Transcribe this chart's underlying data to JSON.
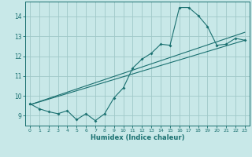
{
  "xlabel": "Humidex (Indice chaleur)",
  "ylabel": "",
  "xlim": [
    -0.5,
    23.5
  ],
  "ylim": [
    8.5,
    14.75
  ],
  "xticks": [
    0,
    1,
    2,
    3,
    4,
    5,
    6,
    7,
    8,
    9,
    10,
    11,
    12,
    13,
    14,
    15,
    16,
    17,
    18,
    19,
    20,
    21,
    22,
    23
  ],
  "yticks": [
    9,
    10,
    11,
    12,
    13,
    14
  ],
  "bg_color": "#c8e8e8",
  "grid_color": "#a0c8c8",
  "line_color": "#1a7070",
  "noisy_line": {
    "x": [
      0,
      1,
      2,
      3,
      4,
      5,
      6,
      7,
      8,
      9,
      10,
      11,
      12,
      13,
      14,
      15,
      16,
      17,
      18,
      19,
      20,
      21,
      22,
      23
    ],
    "y": [
      9.6,
      9.35,
      9.2,
      9.1,
      9.25,
      8.8,
      9.1,
      8.75,
      9.1,
      9.9,
      10.4,
      11.4,
      11.85,
      12.15,
      12.6,
      12.55,
      14.45,
      14.45,
      14.05,
      13.5,
      12.55,
      12.6,
      12.9,
      12.8
    ]
  },
  "trend_line1": {
    "x": [
      0,
      23
    ],
    "y": [
      9.55,
      12.8
    ]
  },
  "trend_line2": {
    "x": [
      0,
      23
    ],
    "y": [
      9.55,
      13.2
    ]
  }
}
